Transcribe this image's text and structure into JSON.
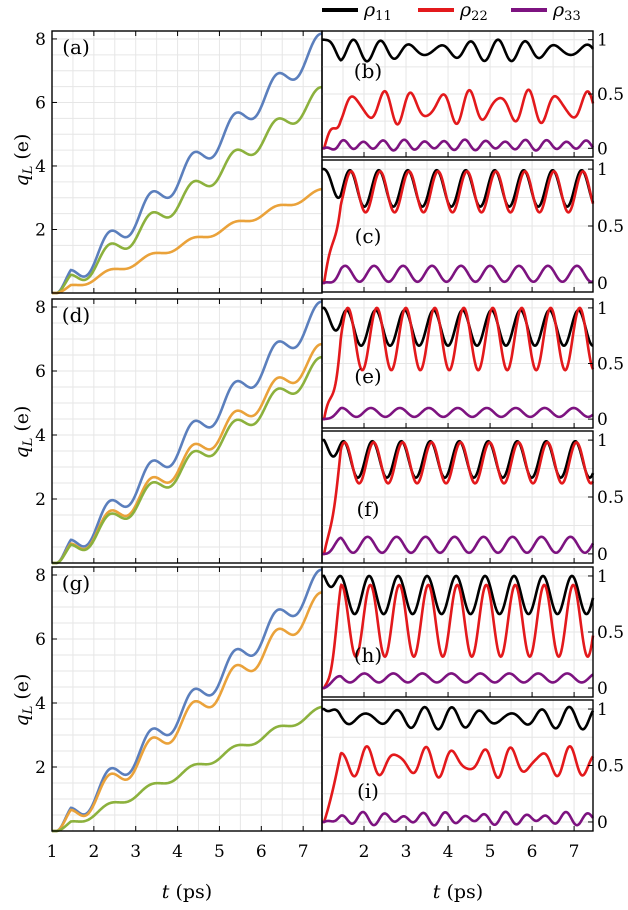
{
  "colors": {
    "blue": "#5b7fbd",
    "green": "#8cb13d",
    "orange": "#eaa23a",
    "rho11": "#000000",
    "rho22": "#e3191c",
    "rho33": "#7d1380",
    "grid": "#e6e6e6"
  },
  "legend": [
    {
      "sym": "ρ",
      "sub": "11",
      "color": "#000000"
    },
    {
      "sym": "ρ",
      "sub": "22",
      "color": "#e3191c"
    },
    {
      "sym": "ρ",
      "sub": "33",
      "color": "#7d1380"
    }
  ],
  "chart_data": [
    {
      "type": "line",
      "panel": "(a)",
      "ylabel_sym": "q",
      "ylabel_sub": "L",
      "ylabel_unit": " (e)",
      "xlim": [
        1,
        7.45
      ],
      "ylim": [
        0,
        8.25
      ],
      "yticks": [
        2,
        4,
        6,
        8
      ],
      "series": [
        {
          "name": "blue",
          "final": 8.0
        },
        {
          "name": "green",
          "final": 6.35
        },
        {
          "name": "orange",
          "final": 3.25
        }
      ]
    },
    {
      "type": "line",
      "panel": "(d)",
      "ylabel_sym": "q",
      "ylabel_sub": "L",
      "ylabel_unit": " (e)",
      "xlim": [
        1,
        7.45
      ],
      "ylim": [
        0,
        8.25
      ],
      "yticks": [
        2,
        4,
        6,
        8
      ],
      "series": [
        {
          "name": "blue",
          "final": 8.0
        },
        {
          "name": "orange",
          "final": 6.7
        },
        {
          "name": "green",
          "final": 6.3
        }
      ]
    },
    {
      "type": "line",
      "panel": "(g)",
      "ylabel_sym": "q",
      "ylabel_sub": "L",
      "ylabel_unit": " (e)",
      "xlim": [
        1,
        7.45
      ],
      "ylim": [
        0,
        8.25
      ],
      "yticks": [
        2,
        4,
        6,
        8
      ],
      "xticks": [
        1,
        2,
        3,
        4,
        5,
        6,
        7
      ],
      "xlabel_sym": "t",
      "xlabel_unit": " (ps)",
      "series": [
        {
          "name": "blue",
          "final": 8.0
        },
        {
          "name": "orange",
          "final": 7.3
        },
        {
          "name": "green",
          "final": 3.85
        }
      ]
    },
    {
      "type": "line",
      "panel": "(b)",
      "xlim": [
        1,
        7.45
      ],
      "ylim": [
        -0.08,
        1.08
      ],
      "yticks": [
        0,
        0.5,
        1
      ],
      "ytick_labels": [
        "0",
        "0.5",
        "1"
      ],
      "series": [
        {
          "name": "ρ11",
          "mean": 0.9,
          "amp": 0.07
        },
        {
          "name": "ρ22",
          "mean": 0.38,
          "amp": 0.12
        },
        {
          "name": "ρ33",
          "mean": 0.03,
          "amp": 0.01
        }
      ]
    },
    {
      "type": "line",
      "panel": "(c)",
      "xlim": [
        1,
        7.45
      ],
      "ylim": [
        -0.08,
        1.08
      ],
      "yticks": [
        0,
        0.5,
        1
      ],
      "ytick_labels": [
        "0",
        "0.5",
        "1"
      ],
      "series": [
        {
          "name": "ρ11",
          "mean": 0.83,
          "amp": 0.16
        },
        {
          "name": "ρ22",
          "mean": 0.8,
          "amp": 0.18
        },
        {
          "name": "ρ33",
          "mean": 0.08,
          "amp": 0.07
        }
      ]
    },
    {
      "type": "line",
      "panel": "(e)",
      "xlim": [
        1,
        7.45
      ],
      "ylim": [
        -0.08,
        1.08
      ],
      "yticks": [
        0,
        0.5,
        1
      ],
      "ytick_labels": [
        "0",
        "0.5",
        "1"
      ],
      "series": [
        {
          "name": "ρ11",
          "mean": 0.82,
          "amp": 0.16
        },
        {
          "name": "ρ22",
          "mean": 0.72,
          "amp": 0.28
        },
        {
          "name": "ρ33",
          "mean": 0.06,
          "amp": 0.04
        }
      ]
    },
    {
      "type": "line",
      "panel": "(f)",
      "xlim": [
        1,
        7.45
      ],
      "ylim": [
        -0.08,
        1.08
      ],
      "yticks": [
        0,
        0.5,
        1
      ],
      "ytick_labels": [
        "0",
        "0.5",
        "1"
      ],
      "series": [
        {
          "name": "ρ11",
          "mean": 0.83,
          "amp": 0.16
        },
        {
          "name": "ρ22",
          "mean": 0.8,
          "amp": 0.18
        },
        {
          "name": "ρ33",
          "mean": 0.08,
          "amp": 0.07
        }
      ]
    },
    {
      "type": "line",
      "panel": "(h)",
      "xlim": [
        1,
        7.45
      ],
      "ylim": [
        -0.08,
        1.08
      ],
      "yticks": [
        0,
        0.5,
        1
      ],
      "ytick_labels": [
        "0",
        "0.5",
        "1"
      ],
      "series": [
        {
          "name": "ρ11",
          "mean": 0.83,
          "amp": 0.17
        },
        {
          "name": "ρ22",
          "mean": 0.6,
          "amp": 0.32
        },
        {
          "name": "ρ33",
          "mean": 0.09,
          "amp": 0.04
        }
      ]
    },
    {
      "type": "line",
      "panel": "(i)",
      "xlim": [
        1,
        7.45
      ],
      "ylim": [
        -0.08,
        1.08
      ],
      "yticks": [
        0,
        0.5,
        1
      ],
      "ytick_labels": [
        "0",
        "0.5",
        "1"
      ],
      "xticks": [
        2,
        3,
        4,
        5,
        6,
        7
      ],
      "xlabel_sym": "t",
      "xlabel_unit": " (ps)",
      "series": [
        {
          "name": "ρ11",
          "mean": 0.92,
          "amp": 0.07
        },
        {
          "name": "ρ22",
          "mean": 0.53,
          "amp": 0.1
        },
        {
          "name": "ρ33",
          "mean": 0.03,
          "amp": 0.02
        }
      ]
    }
  ]
}
